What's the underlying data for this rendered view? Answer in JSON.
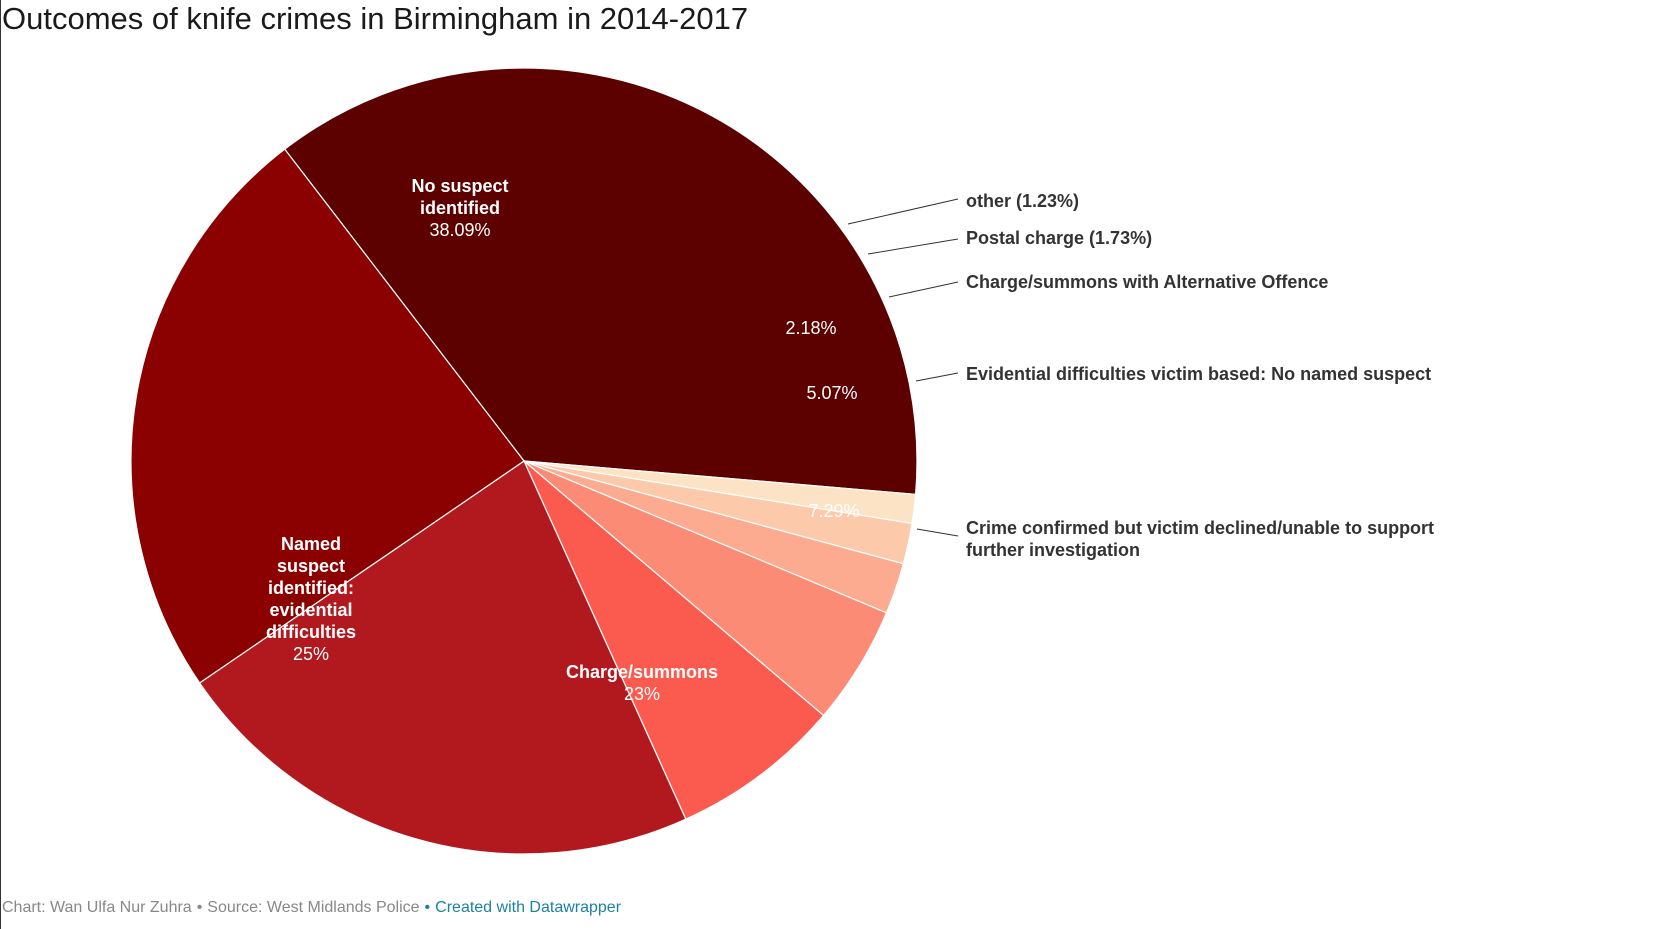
{
  "title": "Outcomes of knife crimes in Birmingham in 2014-2017",
  "footer": {
    "byline": "Chart: Wan Ulfa Nur Zuhra",
    "source": "Source: West Midlands Police",
    "created_with": "Created with Datawrapper"
  },
  "chart_data": {
    "type": "pie",
    "title": "Outcomes of knife crimes in Birmingham in 2014-2017",
    "unit": "%",
    "slices": [
      {
        "label": "No suspect identified",
        "value": 38.09,
        "value_label": "38.09%",
        "color": "#5c0000",
        "label_placement": "inside",
        "inside_lines": [
          "No suspect",
          "identified"
        ]
      },
      {
        "label": "other",
        "value": 1.23,
        "value_label": "1.23%",
        "color": "#fde3c6",
        "label_placement": "outside",
        "outside_text": "other (1.23%)"
      },
      {
        "label": "Postal charge",
        "value": 1.73,
        "value_label": "1.73%",
        "color": "#fcc9ab",
        "label_placement": "outside",
        "outside_text": "Postal charge (1.73%)"
      },
      {
        "label": "Charge/summons with Alternative Offence",
        "value": 2.18,
        "value_label": "2.18%",
        "color": "#fcab91",
        "label_placement": "outside-with-inside-value",
        "outside_text": "Charge/summons with Alternative Offence"
      },
      {
        "label": "Evidential difficulties victim based: No named suspect",
        "value": 5.07,
        "value_label": "5.07%",
        "color": "#fc8b76",
        "label_placement": "outside-with-inside-value",
        "outside_text": "Evidential difficulties victim based: No named suspect"
      },
      {
        "label": "Crime confirmed but victim declined/unable to support further investigation",
        "value": 7.29,
        "value_label": "7.29%",
        "color": "#fb5b4e",
        "label_placement": "outside-with-inside-value",
        "outside_text": "Crime confirmed but victim declined/unable to support further investigation"
      },
      {
        "label": "Charge/summons",
        "value": 23,
        "value_label": "23%",
        "color": "#b2191e",
        "label_placement": "inside",
        "inside_lines": [
          "Charge/summons"
        ]
      },
      {
        "label": "Named suspect identified: evidential difficulties",
        "value": 25,
        "value_label": "25%",
        "color": "#8b0000",
        "label_placement": "inside",
        "inside_lines": [
          "Named",
          "suspect",
          "identified:",
          "evidential",
          "difficulties"
        ]
      }
    ]
  }
}
